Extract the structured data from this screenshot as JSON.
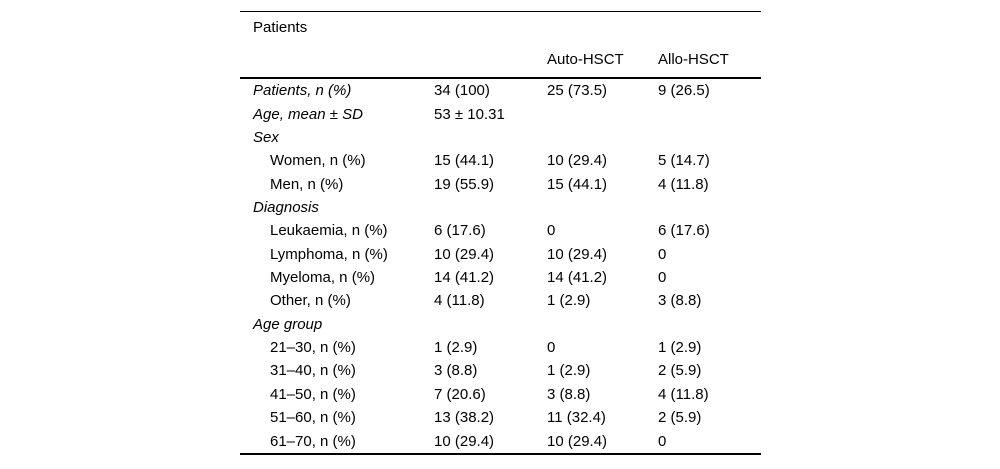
{
  "table": {
    "title": "Patients",
    "column_headers": [
      "",
      "",
      "Auto-HSCT",
      "Allo-HSCT"
    ],
    "rows": [
      {
        "label": "Patients, n (%)",
        "kind": "group",
        "values": [
          "34 (100)",
          "25 (73.5)",
          "9 (26.5)"
        ]
      },
      {
        "label": "Age, mean ± SD",
        "kind": "group",
        "values": [
          "53 ± 10.31",
          "",
          ""
        ]
      },
      {
        "label": "Sex",
        "kind": "group",
        "values": [
          "",
          "",
          ""
        ]
      },
      {
        "label": "Women, n (%)",
        "kind": "item",
        "values": [
          "15 (44.1)",
          "10 (29.4)",
          "5 (14.7)"
        ]
      },
      {
        "label": "Men, n (%)",
        "kind": "item",
        "values": [
          "19 (55.9)",
          "15 (44.1)",
          "4 (11.8)"
        ]
      },
      {
        "label": "Diagnosis",
        "kind": "group",
        "values": [
          "",
          "",
          ""
        ]
      },
      {
        "label": "Leukaemia, n (%)",
        "kind": "item",
        "values": [
          "6 (17.6)",
          "0",
          "6 (17.6)"
        ]
      },
      {
        "label": "Lymphoma, n (%)",
        "kind": "item",
        "values": [
          "10 (29.4)",
          "10 (29.4)",
          "0"
        ]
      },
      {
        "label": "Myeloma, n (%)",
        "kind": "item",
        "values": [
          "14 (41.2)",
          "14 (41.2)",
          "0"
        ]
      },
      {
        "label": "Other, n (%)",
        "kind": "item",
        "values": [
          "4 (11.8)",
          "1 (2.9)",
          "3 (8.8)"
        ]
      },
      {
        "label": "Age group",
        "kind": "group",
        "values": [
          "",
          "",
          ""
        ]
      },
      {
        "label": "21–30, n (%)",
        "kind": "item",
        "values": [
          "1 (2.9)",
          "0",
          "1 (2.9)"
        ]
      },
      {
        "label": "31–40, n (%)",
        "kind": "item",
        "values": [
          "3 (8.8)",
          "1 (2.9)",
          "2 (5.9)"
        ]
      },
      {
        "label": "41–50, n (%)",
        "kind": "item",
        "values": [
          "7 (20.6)",
          "3 (8.8)",
          "4 (11.8)"
        ]
      },
      {
        "label": "51–60, n (%)",
        "kind": "item",
        "values": [
          "13 (38.2)",
          "11 (32.4)",
          "2 (5.9)"
        ]
      },
      {
        "label": "61–70, n (%)",
        "kind": "item",
        "values": [
          "10 (29.4)",
          "10 (29.4)",
          "0"
        ]
      }
    ]
  }
}
